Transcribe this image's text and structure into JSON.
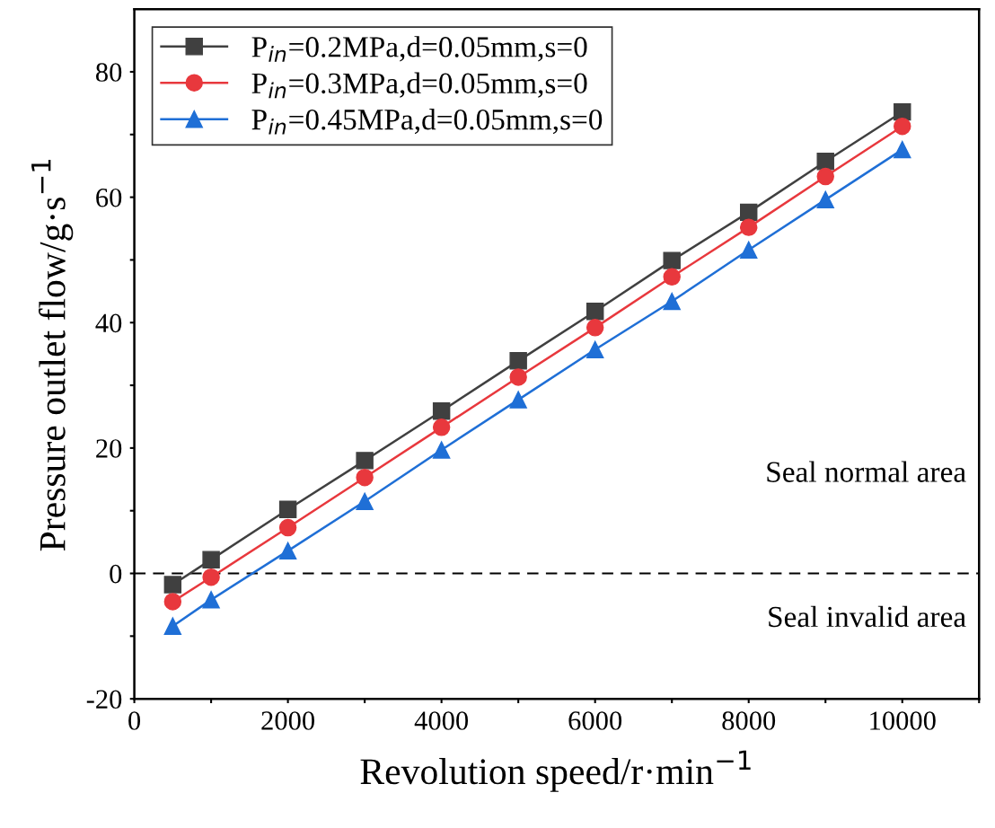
{
  "chart_data": {
    "type": "line",
    "xlabel": "Revolution speed/r·min$^{−1}$",
    "ylabel": "Pressure outlet flow/g·s$^{−1}$",
    "x": [
      500,
      1000,
      2000,
      3000,
      4000,
      5000,
      6000,
      7000,
      8000,
      9000,
      10000
    ],
    "series": [
      {
        "name": "P$_{in}$=0.2MPa,d=0.05mm,s=0",
        "color": "#404040",
        "marker": "square",
        "values": [
          -1.8,
          2.2,
          10.2,
          18.0,
          25.9,
          33.9,
          41.8,
          49.9,
          57.6,
          65.7,
          73.6
        ]
      },
      {
        "name": "P$_{in}$=0.3MPa,d=0.05mm,s=0",
        "color": "#e8383d",
        "marker": "circle",
        "values": [
          -4.5,
          -0.6,
          7.3,
          15.3,
          23.3,
          31.3,
          39.2,
          47.3,
          55.2,
          63.3,
          71.3
        ]
      },
      {
        "name": "P$_{in}$=0.45MPa,d=0.05mm,s=0",
        "color": "#1f6fd6",
        "marker": "triangle",
        "values": [
          -8.4,
          -4.2,
          3.6,
          11.5,
          19.7,
          27.7,
          35.7,
          43.4,
          51.6,
          59.6,
          67.6
        ]
      }
    ],
    "xlim": [
      0,
      11000
    ],
    "xticks": [
      0,
      {
        "value": 1000,
        "label": null
      },
      2000,
      {
        "value": 3000,
        "label": null
      },
      4000,
      {
        "value": 5000,
        "label": null
      },
      6000,
      {
        "value": 7000,
        "label": null
      },
      8000,
      {
        "value": 9000,
        "label": null
      },
      10000,
      {
        "value": 11000,
        "label": null
      }
    ],
    "ylim": [
      -20,
      90
    ],
    "yticks": [
      -20,
      {
        "value": -10,
        "label": null
      },
      0,
      {
        "value": 10,
        "label": null
      },
      20,
      {
        "value": 30,
        "label": null
      },
      40,
      {
        "value": 50,
        "label": null
      },
      60,
      {
        "value": 70,
        "label": null
      },
      80
    ],
    "ref_lines": [
      {
        "axis": "y",
        "value": 0,
        "color": "#000000",
        "line_style": "dashed"
      }
    ],
    "annotations": [
      "Seal normal area",
      "Seal invalid area"
    ],
    "legend": "top left",
    "grid": false,
    "line_style": "solid"
  }
}
